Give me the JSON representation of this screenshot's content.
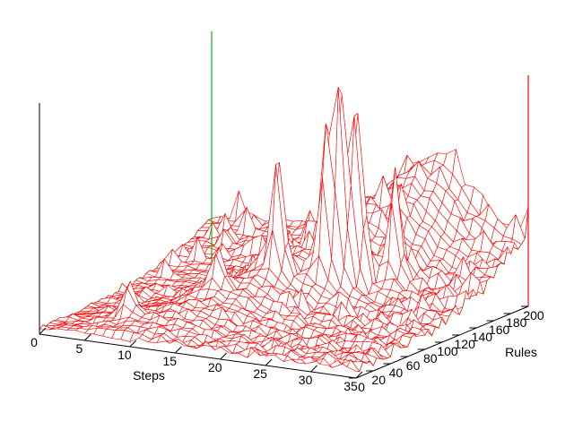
{
  "chart_data": {
    "type": "surface",
    "title": "",
    "axes": {
      "x": {
        "label": "Steps",
        "range": [
          0,
          35
        ],
        "ticks": [
          {
            "value": 0,
            "label": "0"
          },
          {
            "value": 5,
            "label": "5"
          },
          {
            "value": 10,
            "label": "10"
          },
          {
            "value": 15,
            "label": "15"
          },
          {
            "value": 20,
            "label": "20"
          },
          {
            "value": 25,
            "label": "25"
          },
          {
            "value": 30,
            "label": "30"
          },
          {
            "value": 35,
            "label": "35"
          }
        ]
      },
      "y": {
        "label": "Rules",
        "range": [
          0,
          200
        ],
        "ticks": [
          {
            "value": 0,
            "label": "0"
          },
          {
            "value": 20,
            "label": "20"
          },
          {
            "value": 40,
            "label": "40"
          },
          {
            "value": 60,
            "label": "60"
          },
          {
            "value": 80,
            "label": "80"
          },
          {
            "value": 100,
            "label": "100"
          },
          {
            "value": 120,
            "label": "120"
          },
          {
            "value": 140,
            "label": "140"
          },
          {
            "value": 160,
            "label": "160"
          },
          {
            "value": 180,
            "label": "180"
          },
          {
            "value": 200,
            "label": "200"
          }
        ]
      },
      "z": {
        "label": "",
        "range": [
          0,
          1
        ]
      }
    },
    "surface": {
      "x_count": 36,
      "y_count": 51,
      "floor_level": 0.02,
      "ridge_height": 0.3,
      "back_wall_height": 0.28,
      "peaks": [
        {
          "steps": 22,
          "rules": 118,
          "height": 0.78
        },
        {
          "steps": 23,
          "rules": 126,
          "height": 0.7
        },
        {
          "steps": 21,
          "rules": 112,
          "height": 0.58
        },
        {
          "steps": 17,
          "rules": 98,
          "height": 0.52
        },
        {
          "steps": 26,
          "rules": 140,
          "height": 0.46
        },
        {
          "steps": 13,
          "rules": 70,
          "height": 0.18
        },
        {
          "steps": 7,
          "rules": 30,
          "height": 0.15
        }
      ],
      "corner_spikes": [
        {
          "steps": 0,
          "rules": 200,
          "height": 1.0
        },
        {
          "steps": 35,
          "rules": 200,
          "height": 1.0
        }
      ]
    },
    "colors": {
      "mesh_top": "#ff0000",
      "mesh_underside": "#00bb00",
      "axis": "#000000",
      "background": "#ffffff"
    }
  }
}
